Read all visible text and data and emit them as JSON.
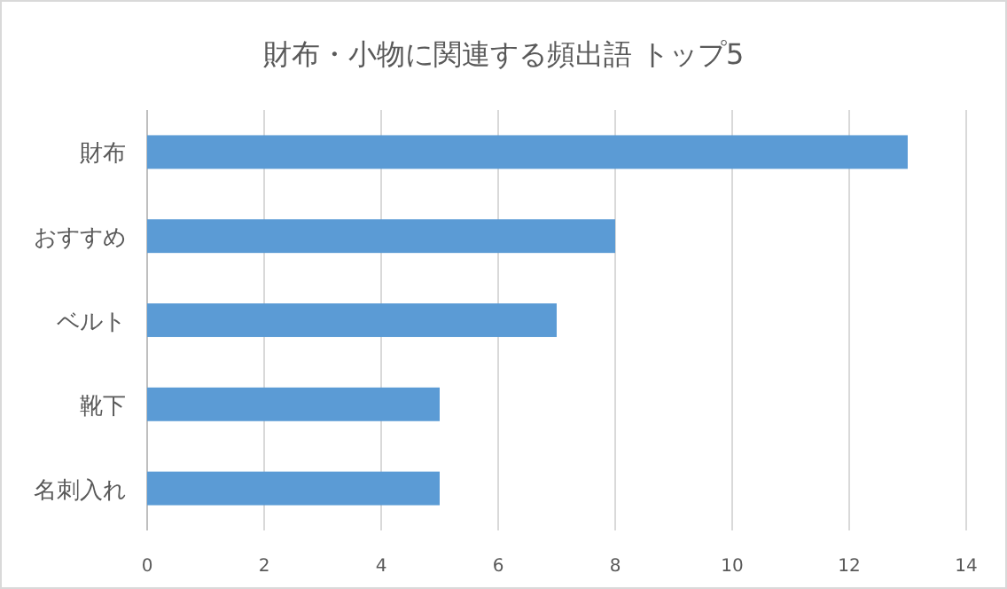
{
  "chart_data": {
    "type": "bar",
    "orientation": "horizontal",
    "title": "財布・小物に関連する頻出語 トップ5",
    "categories": [
      "財布",
      "おすすめ",
      "ベルト",
      "靴下",
      "名刺入れ"
    ],
    "values": [
      13,
      8,
      7,
      5,
      5
    ],
    "color": "#5b9bd5",
    "xlim": [
      0,
      14
    ],
    "xticks": [
      0,
      2,
      4,
      6,
      8,
      10,
      12,
      14
    ],
    "grid": "x"
  }
}
